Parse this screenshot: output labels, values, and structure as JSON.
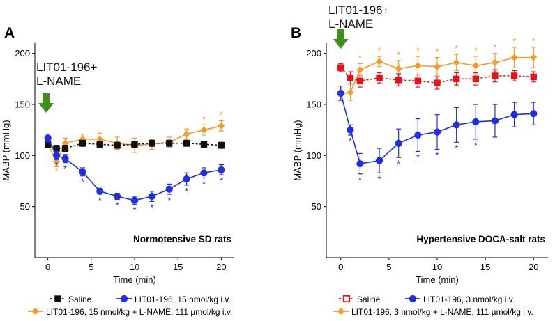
{
  "chart_data": [
    {
      "panel_letter": "A",
      "type": "line",
      "title": "Normotensive  SD rats",
      "xlabel": "Time (min)",
      "ylabel": "MABP (mmHg)",
      "xlim": [
        -1.5,
        21.5
      ],
      "ylim": [
        0,
        210
      ],
      "xticks": [
        0,
        5,
        10,
        15,
        20
      ],
      "yticks": [
        50,
        100,
        150,
        200
      ],
      "annotation": {
        "lines": [
          "LIT01-196+",
          "L-NAME"
        ],
        "arrow_x": -0.2
      },
      "series": [
        {
          "name": "LIT01-196,  15 nmol/kg + L-NAME, 111 µmol/kg i.v.",
          "color": "#f39c2b",
          "marker": "diamond",
          "dashed": false,
          "sig_color": "#f39c2b",
          "x": [
            0,
            1,
            2,
            4,
            6,
            8,
            10,
            12,
            14,
            16,
            18,
            20
          ],
          "y": [
            111,
            94,
            112,
            116,
            116,
            112,
            110,
            111,
            113,
            121,
            125,
            129
          ],
          "err": [
            3,
            5,
            5,
            5,
            6,
            6,
            7,
            5,
            5,
            5,
            5,
            5
          ],
          "sig": [
            false,
            true,
            false,
            false,
            false,
            false,
            false,
            false,
            false,
            false,
            true,
            true
          ]
        },
        {
          "name": "Saline",
          "color": "#111111",
          "marker": "square",
          "dashed": true,
          "sig_color": null,
          "x": [
            0,
            1,
            2,
            4,
            6,
            8,
            10,
            12,
            14,
            16,
            18,
            20
          ],
          "y": [
            111,
            107,
            107,
            112,
            111,
            110,
            111,
            112,
            112,
            112,
            111,
            110
          ],
          "err": [
            3,
            3,
            3,
            3,
            3,
            3,
            3,
            3,
            3,
            3,
            3,
            3
          ],
          "sig": []
        },
        {
          "name": "LIT01-196,  15 nmol/kg i.v.",
          "color": "#1f2fe0",
          "marker": "circle",
          "dashed": false,
          "sig_color": "#1f2fe0",
          "x": [
            0,
            1,
            2,
            4,
            6,
            8,
            10,
            12,
            14,
            16,
            18,
            20
          ],
          "y": [
            117,
            100,
            97,
            84,
            65,
            60,
            56,
            60,
            67,
            77,
            83,
            86
          ],
          "err": [
            4,
            4,
            4,
            4,
            3,
            3,
            4,
            5,
            5,
            6,
            5,
            5
          ],
          "sig": [
            false,
            true,
            true,
            true,
            true,
            true,
            true,
            true,
            true,
            true,
            true,
            true
          ]
        }
      ],
      "legend": {
        "rows": [
          [
            "Saline",
            "LIT01-196,  15 nmol/kg i.v."
          ],
          [
            "LIT01-196,  15 nmol/kg + L-NAME, 111 µmol/kg i.v."
          ]
        ]
      }
    },
    {
      "panel_letter": "B",
      "type": "line",
      "title": "Hypertensive DOCA-salt rats",
      "xlabel": "Time (min)",
      "ylabel": "MABP (mmHg)",
      "xlim": [
        -1.5,
        21.5
      ],
      "ylim": [
        0,
        210
      ],
      "xticks": [
        0,
        5,
        10,
        15,
        20
      ],
      "yticks": [
        50,
        100,
        150,
        200
      ],
      "annotation": {
        "lines": [
          "LIT01-196+",
          "L-NAME"
        ],
        "arrow_x": 0
      },
      "series": [
        {
          "name": "LIT01-196,  3 nmol/kg + L-NAME, 111 µmol/kg i.v.",
          "color": "#f39c2b",
          "marker": "diamond",
          "dashed": false,
          "sig_color": "#f39c2b",
          "x": [
            0,
            1,
            2,
            4,
            6,
            8,
            10,
            12,
            14,
            16,
            18,
            20
          ],
          "y": [
            160,
            162,
            184,
            192,
            185,
            188,
            187,
            191,
            188,
            191,
            196,
            196
          ],
          "err": [
            6,
            8,
            6,
            5,
            8,
            9,
            9,
            8,
            9,
            9,
            10,
            10
          ],
          "sig": [
            false,
            false,
            true,
            true,
            true,
            true,
            true,
            true,
            true,
            true,
            true,
            true
          ]
        },
        {
          "name": "Saline",
          "color": "#e8121a",
          "marker": "square",
          "dashed": true,
          "sig_color": null,
          "x": [
            0,
            1,
            2,
            4,
            6,
            8,
            10,
            12,
            14,
            16,
            18,
            20
          ],
          "y": [
            186,
            176,
            173,
            176,
            174,
            173,
            171,
            175,
            175,
            178,
            178,
            177
          ],
          "err": [
            4,
            6,
            6,
            5,
            6,
            6,
            6,
            6,
            6,
            6,
            5,
            5
          ],
          "sig": []
        },
        {
          "name": "LIT01-196,  3 nmol/kg i.v.",
          "color": "#1f2fe0",
          "marker": "circle",
          "dashed": false,
          "sig_color": "#1f2fe0",
          "x": [
            0,
            1,
            2,
            4,
            6,
            8,
            10,
            12,
            14,
            16,
            18,
            20
          ],
          "y": [
            161,
            125,
            92,
            95,
            112,
            120,
            123,
            130,
            133,
            134,
            140,
            141
          ],
          "err": [
            7,
            5,
            10,
            12,
            14,
            16,
            17,
            17,
            17,
            16,
            12,
            11
          ],
          "sig": [
            false,
            true,
            true,
            true,
            true,
            true,
            true,
            true,
            true,
            false,
            false,
            false
          ]
        }
      ],
      "legend": {
        "rows": [
          [
            "Saline",
            "LIT01-196,  3 nmol/kg i.v."
          ],
          [
            "LIT01-196,  3 nmol/kg + L-NAME, 111 µmol/kg i.v."
          ]
        ]
      }
    }
  ]
}
